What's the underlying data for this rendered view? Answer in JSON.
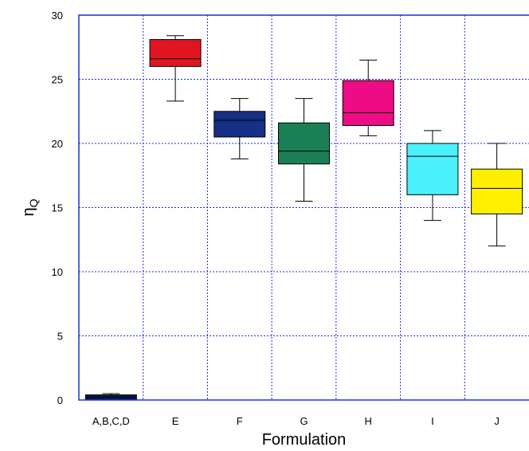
{
  "chart_data": {
    "type": "box",
    "title": "",
    "xlabel": "Formulation",
    "ylabel": {
      "main": "η",
      "subscript": "Q"
    },
    "ylim": [
      0,
      30
    ],
    "yticks": [
      0,
      5,
      10,
      15,
      20,
      25,
      30
    ],
    "grid": true,
    "categories": [
      "A,B,C,D",
      "E",
      "F",
      "G",
      "H",
      "I",
      "J"
    ],
    "boxes": [
      {
        "category": "A,B,C,D",
        "whisker_low": 0.0,
        "q1": 0.0,
        "median": 0.2,
        "q3": 0.4,
        "whisker_high": 0.5,
        "color": "#0d1a4a"
      },
      {
        "category": "E",
        "whisker_low": 23.3,
        "q1": 26.0,
        "median": 26.6,
        "q3": 28.1,
        "whisker_high": 28.4,
        "color": "#e0151f"
      },
      {
        "category": "F",
        "whisker_low": 18.8,
        "q1": 20.5,
        "median": 21.8,
        "q3": 22.5,
        "whisker_high": 23.5,
        "color": "#163085"
      },
      {
        "category": "G",
        "whisker_low": 15.5,
        "q1": 18.4,
        "median": 19.4,
        "q3": 21.6,
        "whisker_high": 23.5,
        "color": "#1b7f56"
      },
      {
        "category": "H",
        "whisker_low": 20.6,
        "q1": 21.4,
        "median": 22.4,
        "q3": 24.9,
        "whisker_high": 26.5,
        "color": "#ee0c86"
      },
      {
        "category": "I",
        "whisker_low": 14.0,
        "q1": 16.0,
        "median": 19.0,
        "q3": 20.0,
        "whisker_high": 21.0,
        "color": "#4af0fc"
      },
      {
        "category": "J",
        "whisker_low": 12.0,
        "q1": 14.5,
        "median": 16.5,
        "q3": 18.0,
        "whisker_high": 20.0,
        "color": "#fff000"
      }
    ],
    "colors": {
      "frame": "#1d2fd6",
      "grid": "#1d2fd6",
      "box_outline": "#000000",
      "text": "#000000"
    }
  }
}
